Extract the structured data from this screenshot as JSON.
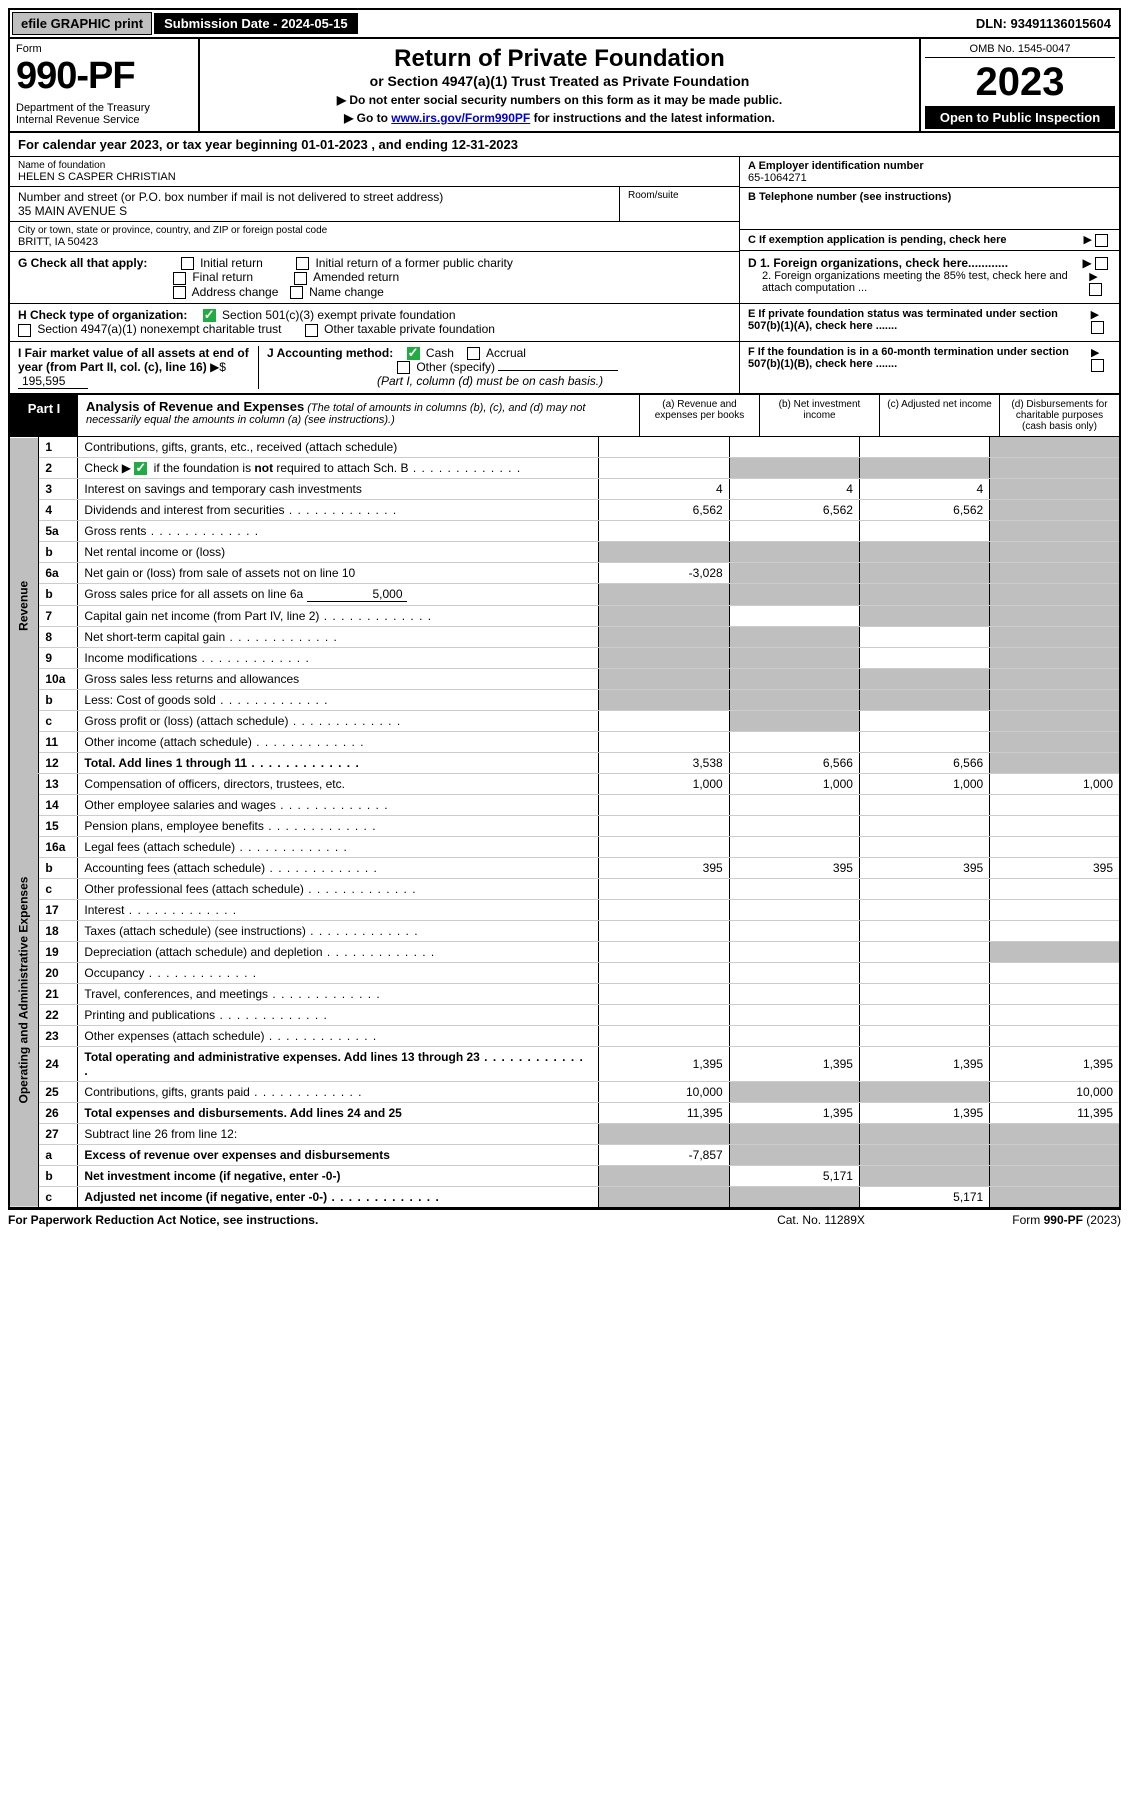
{
  "topbar": {
    "efile": "efile GRAPHIC print",
    "submission": "Submission Date - 2024-05-15",
    "dln": "DLN: 93491136015604"
  },
  "header": {
    "form_word": "Form",
    "form_num": "990-PF",
    "dept": "Department of the Treasury\nInternal Revenue Service",
    "title": "Return of Private Foundation",
    "subtitle": "or Section 4947(a)(1) Trust Treated as Private Foundation",
    "note1": "▶ Do not enter social security numbers on this form as it may be made public.",
    "note2_pre": "▶ Go to ",
    "note2_link": "www.irs.gov/Form990PF",
    "note2_post": " for instructions and the latest information.",
    "omb": "OMB No. 1545-0047",
    "year": "2023",
    "open": "Open to Public Inspection"
  },
  "calyear": "For calendar year 2023, or tax year beginning 01-01-2023            , and ending 12-31-2023",
  "info": {
    "name_lbl": "Name of foundation",
    "name_val": "HELEN S CASPER CHRISTIAN",
    "addr_lbl": "Number and street (or P.O. box number if mail is not delivered to street address)",
    "addr_val": "35 MAIN AVENUE S",
    "room_lbl": "Room/suite",
    "city_lbl": "City or town, state or province, country, and ZIP or foreign postal code",
    "city_val": "BRITT, IA  50423",
    "a_lbl": "A Employer identification number",
    "a_val": "65-1064271",
    "b_lbl": "B Telephone number (see instructions)",
    "c_lbl": "C If exemption application is pending, check here"
  },
  "g": {
    "label": "G Check all that apply:",
    "opts": [
      "Initial return",
      "Final return",
      "Address change",
      "Initial return of a former public charity",
      "Amended return",
      "Name change"
    ]
  },
  "d": {
    "d1": "D 1. Foreign organizations, check here............",
    "d2": "2. Foreign organizations meeting the 85% test, check here and attach computation ...",
    "e": "E  If private foundation status was terminated under section 507(b)(1)(A), check here .......",
    "f": "F  If the foundation is in a 60-month termination under section 507(b)(1)(B), check here ......."
  },
  "h": {
    "label": "H Check type of organization:",
    "opt1": "Section 501(c)(3) exempt private foundation",
    "opt2": "Section 4947(a)(1) nonexempt charitable trust",
    "opt3": "Other taxable private foundation"
  },
  "i": {
    "label": "I Fair market value of all assets at end of year (from Part II, col. (c), line 16)",
    "arrow": "▶$",
    "val": "195,595"
  },
  "j": {
    "label": "J Accounting method:",
    "cash": "Cash",
    "accrual": "Accrual",
    "other": "Other (specify)",
    "note": "(Part I, column (d) must be on cash basis.)"
  },
  "part1": {
    "label": "Part I",
    "title": "Analysis of Revenue and Expenses",
    "paren": "(The total of amounts in columns (b), (c), and (d) may not necessarily equal the amounts in column (a) (see instructions).)",
    "cols": {
      "a": "(a)  Revenue and expenses per books",
      "b": "(b)  Net investment income",
      "c": "(c)  Adjusted net income",
      "d": "(d)  Disbursements for charitable purposes (cash basis only)"
    }
  },
  "sides": {
    "rev": "Revenue",
    "exp": "Operating and Administrative Expenses"
  },
  "rows": [
    {
      "n": "1",
      "d": "Contributions, gifts, grants, etc., received (attach schedule)",
      "a": "",
      "b": "",
      "c": "",
      "dcol": "",
      "grey_d": true
    },
    {
      "n": "2",
      "d": "Check ▶ ☑ if the foundation is not required to attach Sch. B",
      "dots": true,
      "a": "",
      "b": "",
      "c": "",
      "dcol": "",
      "grey_bcd": true
    },
    {
      "n": "3",
      "d": "Interest on savings and temporary cash investments",
      "a": "4",
      "b": "4",
      "c": "4",
      "dcol": "",
      "grey_d": true
    },
    {
      "n": "4",
      "d": "Dividends and interest from securities",
      "dots": true,
      "a": "6,562",
      "b": "6,562",
      "c": "6,562",
      "dcol": "",
      "grey_d": true
    },
    {
      "n": "5a",
      "d": "Gross rents",
      "dots": true,
      "a": "",
      "b": "",
      "c": "",
      "dcol": "",
      "grey_d": true
    },
    {
      "n": "b",
      "d": "Net rental income or (loss)",
      "a": "",
      "b": "",
      "c": "",
      "dcol": "",
      "grey_all": true
    },
    {
      "n": "6a",
      "d": "Net gain or (loss) from sale of assets not on line 10",
      "a": "-3,028",
      "b": "",
      "c": "",
      "dcol": "",
      "grey_bcd": true
    },
    {
      "n": "b",
      "d": "Gross sales price for all assets on line 6a",
      "inline_val": "5,000",
      "a": "",
      "b": "",
      "c": "",
      "dcol": "",
      "grey_all": true
    },
    {
      "n": "7",
      "d": "Capital gain net income (from Part IV, line 2)",
      "dots": true,
      "a": "",
      "b": "",
      "c": "",
      "dcol": "",
      "grey_acd": true
    },
    {
      "n": "8",
      "d": "Net short-term capital gain",
      "dots": true,
      "a": "",
      "b": "",
      "c": "",
      "dcol": "",
      "grey_abd": true
    },
    {
      "n": "9",
      "d": "Income modifications",
      "dots": true,
      "a": "",
      "b": "",
      "c": "",
      "dcol": "",
      "grey_abd": true
    },
    {
      "n": "10a",
      "d": "Gross sales less returns and allowances",
      "a": "",
      "b": "",
      "c": "",
      "dcol": "",
      "grey_all": true
    },
    {
      "n": "b",
      "d": "Less: Cost of goods sold",
      "dots": true,
      "a": "",
      "b": "",
      "c": "",
      "dcol": "",
      "grey_all": true
    },
    {
      "n": "c",
      "d": "Gross profit or (loss) (attach schedule)",
      "dots": true,
      "a": "",
      "b": "",
      "c": "",
      "dcol": "",
      "grey_bd": true
    },
    {
      "n": "11",
      "d": "Other income (attach schedule)",
      "dots": true,
      "a": "",
      "b": "",
      "c": "",
      "dcol": "",
      "grey_d": true
    },
    {
      "n": "12",
      "d": "Total. Add lines 1 through 11",
      "dots": true,
      "bold": true,
      "a": "3,538",
      "b": "6,566",
      "c": "6,566",
      "dcol": "",
      "grey_d": true
    },
    {
      "n": "13",
      "d": "Compensation of officers, directors, trustees, etc.",
      "a": "1,000",
      "b": "1,000",
      "c": "1,000",
      "dcol": "1,000"
    },
    {
      "n": "14",
      "d": "Other employee salaries and wages",
      "dots": true,
      "a": "",
      "b": "",
      "c": "",
      "dcol": ""
    },
    {
      "n": "15",
      "d": "Pension plans, employee benefits",
      "dots": true,
      "a": "",
      "b": "",
      "c": "",
      "dcol": ""
    },
    {
      "n": "16a",
      "d": "Legal fees (attach schedule)",
      "dots": true,
      "a": "",
      "b": "",
      "c": "",
      "dcol": ""
    },
    {
      "n": "b",
      "d": "Accounting fees (attach schedule)",
      "dots": true,
      "a": "395",
      "b": "395",
      "c": "395",
      "dcol": "395"
    },
    {
      "n": "c",
      "d": "Other professional fees (attach schedule)",
      "dots": true,
      "a": "",
      "b": "",
      "c": "",
      "dcol": ""
    },
    {
      "n": "17",
      "d": "Interest",
      "dots": true,
      "a": "",
      "b": "",
      "c": "",
      "dcol": ""
    },
    {
      "n": "18",
      "d": "Taxes (attach schedule) (see instructions)",
      "dots": true,
      "a": "",
      "b": "",
      "c": "",
      "dcol": ""
    },
    {
      "n": "19",
      "d": "Depreciation (attach schedule) and depletion",
      "dots": true,
      "a": "",
      "b": "",
      "c": "",
      "dcol": "",
      "grey_d": true
    },
    {
      "n": "20",
      "d": "Occupancy",
      "dots": true,
      "a": "",
      "b": "",
      "c": "",
      "dcol": ""
    },
    {
      "n": "21",
      "d": "Travel, conferences, and meetings",
      "dots": true,
      "a": "",
      "b": "",
      "c": "",
      "dcol": ""
    },
    {
      "n": "22",
      "d": "Printing and publications",
      "dots": true,
      "a": "",
      "b": "",
      "c": "",
      "dcol": ""
    },
    {
      "n": "23",
      "d": "Other expenses (attach schedule)",
      "dots": true,
      "a": "",
      "b": "",
      "c": "",
      "dcol": ""
    },
    {
      "n": "24",
      "d": "Total operating and administrative expenses. Add lines 13 through 23",
      "dots": true,
      "bold": true,
      "a": "1,395",
      "b": "1,395",
      "c": "1,395",
      "dcol": "1,395"
    },
    {
      "n": "25",
      "d": "Contributions, gifts, grants paid",
      "dots": true,
      "a": "10,000",
      "b": "",
      "c": "",
      "dcol": "10,000",
      "grey_bc": true
    },
    {
      "n": "26",
      "d": "Total expenses and disbursements. Add lines 24 and 25",
      "bold": true,
      "a": "11,395",
      "b": "1,395",
      "c": "1,395",
      "dcol": "11,395"
    },
    {
      "n": "27",
      "d": "Subtract line 26 from line 12:",
      "a": "",
      "b": "",
      "c": "",
      "dcol": "",
      "grey_all": true
    },
    {
      "n": "a",
      "d": "Excess of revenue over expenses and disbursements",
      "bold": true,
      "a": "-7,857",
      "b": "",
      "c": "",
      "dcol": "",
      "grey_bcd": true
    },
    {
      "n": "b",
      "d": "Net investment income (if negative, enter -0-)",
      "bold": true,
      "a": "",
      "b": "5,171",
      "c": "",
      "dcol": "",
      "grey_acd": true
    },
    {
      "n": "c",
      "d": "Adjusted net income (if negative, enter -0-)",
      "dots": true,
      "bold": true,
      "a": "",
      "b": "",
      "c": "5,171",
      "dcol": "",
      "grey_abd": true
    }
  ],
  "footer": {
    "left": "For Paperwork Reduction Act Notice, see instructions.",
    "center": "Cat. No. 11289X",
    "right": "Form 990-PF (2023)"
  },
  "colors": {
    "grey": "#bfbfbf",
    "link": "#0000cc",
    "check_green": "#22aa44"
  }
}
